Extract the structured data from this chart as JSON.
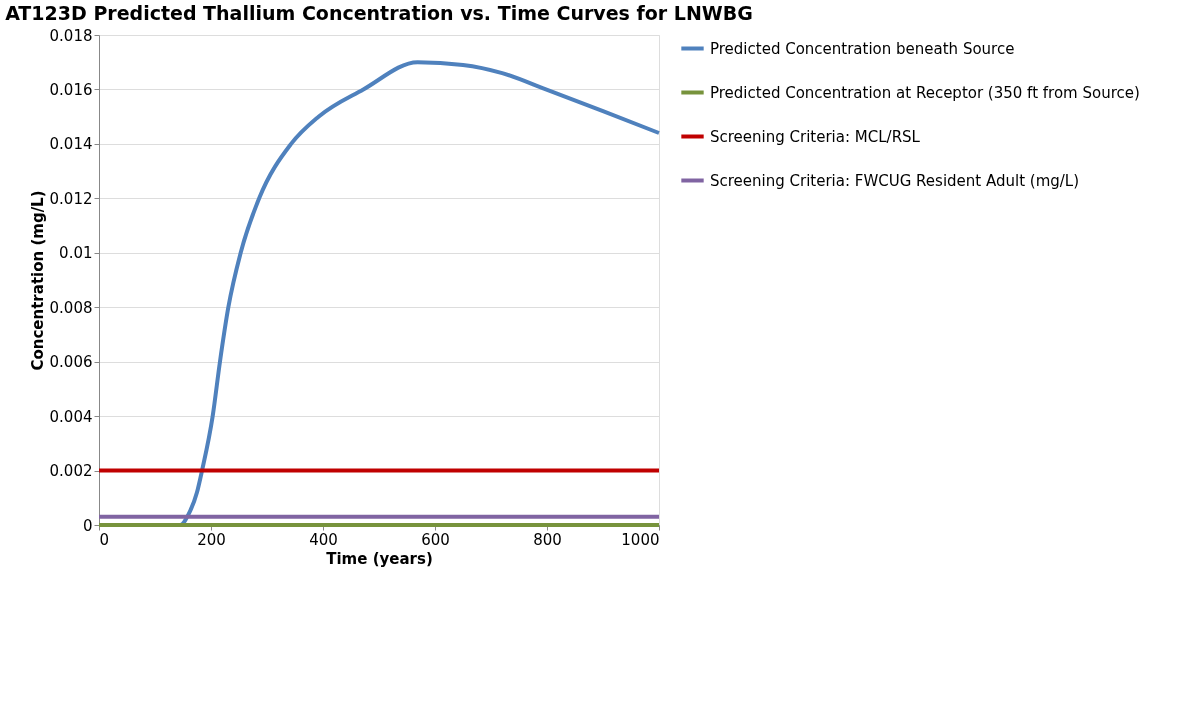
{
  "chart_data": {
    "type": "line",
    "title": "AT123D Predicted Thallium Concentration vs. Time Curves for LNWBG",
    "xlabel": "Time (years)",
    "ylabel": "Concentration (mg/L)",
    "xlim": [
      0,
      1000
    ],
    "xticks": [
      0,
      200,
      400,
      600,
      800,
      1000
    ],
    "ylim": [
      0,
      0.018
    ],
    "yticks": [
      0,
      0.002,
      0.004,
      0.006,
      0.008,
      0.01,
      0.012,
      0.014,
      0.016,
      0.018
    ],
    "grid": "y",
    "legend": "right",
    "marker": "none",
    "line_style": "solid",
    "series": [
      {
        "name": "Predicted Concentration beneath Source",
        "color": "#4f81bd",
        "x": [
          0,
          100,
          145,
          160,
          175,
          184,
          203,
          216,
          231,
          253,
          286,
          343,
          392,
          472,
          569,
          650,
          720,
          798,
          900,
          1000
        ],
        "values": [
          0,
          0,
          0,
          0.0004,
          0.0012,
          0.002,
          0.004,
          0.006,
          0.008,
          0.01,
          0.012,
          0.014,
          0.015,
          0.016,
          0.017,
          0.0169,
          0.0166,
          0.016,
          0.0152,
          0.0144
        ]
      },
      {
        "name": "Predicted Concentration at Receptor (350 ft from Source)",
        "color": "#77933c",
        "x": [
          0,
          1000
        ],
        "values": [
          0,
          0
        ]
      },
      {
        "name": "Screening Criteria: MCL/RSL",
        "color": "#c00000",
        "x": [
          0,
          1000
        ],
        "values": [
          0.002,
          0.002
        ]
      },
      {
        "name": "Screening Criteria: FWCUG Resident Adult (mg/L)",
        "color": "#8064a2",
        "x": [
          0,
          1000
        ],
        "values": [
          0.0003,
          0.0003
        ]
      }
    ]
  }
}
